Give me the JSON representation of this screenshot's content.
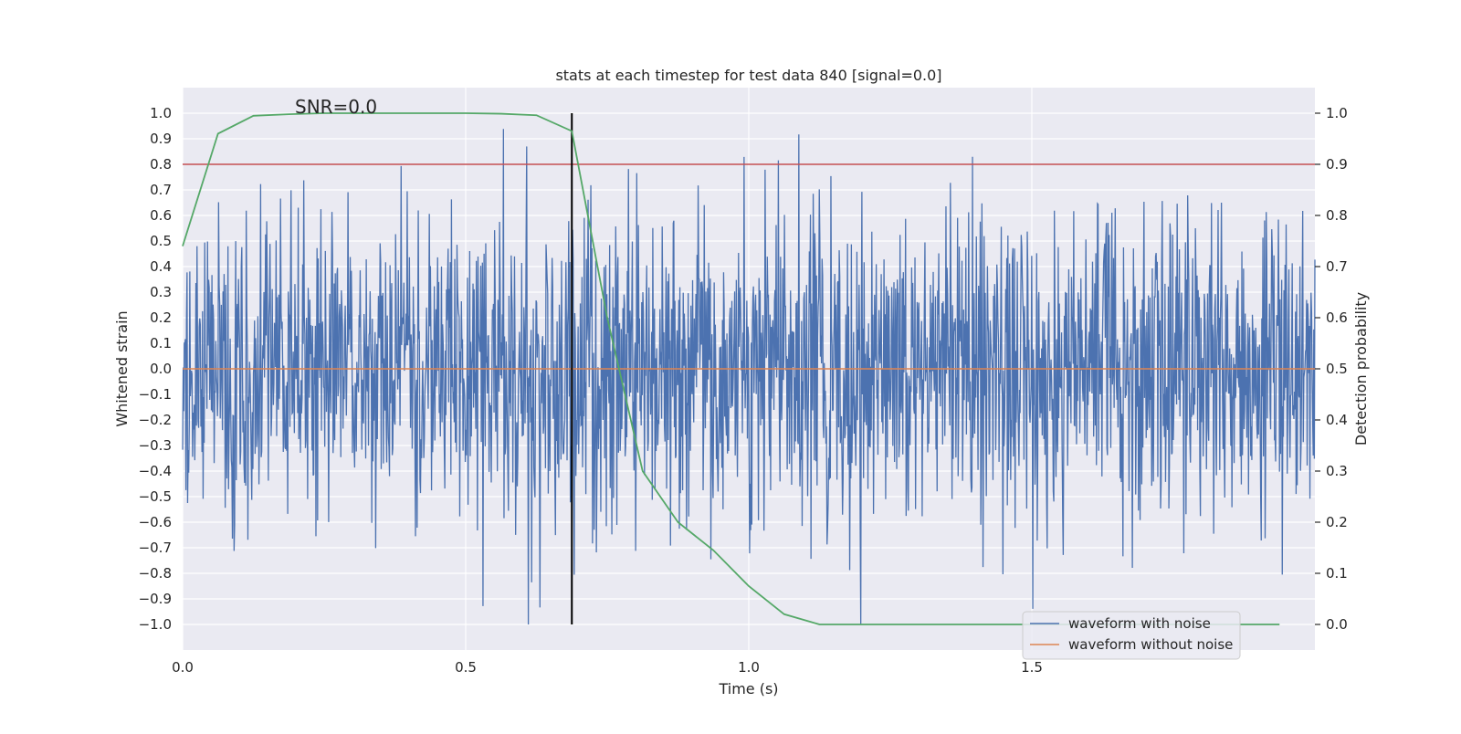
{
  "chart_data": {
    "type": "line",
    "title": "stats at each timestep for test data 840 [signal=0.0]",
    "annotation": "SNR=0.0",
    "xlabel": "Time (s)",
    "ylabel": "Whitened strain",
    "ylabel_right": "Detection probability",
    "xlim": [
      0.0,
      2.0
    ],
    "ylim": [
      -1.1,
      1.1
    ],
    "ylim_right": [
      -0.05,
      1.05
    ],
    "x_ticks": [
      0.0,
      0.5,
      1.0,
      1.5
    ],
    "x_tick_labels": [
      "0.0",
      "0.5",
      "1.0",
      "1.5"
    ],
    "y_ticks": [
      1.0,
      0.9,
      0.8,
      0.7,
      0.6,
      0.5,
      0.4,
      0.3,
      0.2,
      0.1,
      0.0,
      -0.1,
      -0.2,
      -0.3,
      -0.4,
      -0.5,
      -0.6,
      -0.7,
      -0.8,
      -0.9,
      -1.0
    ],
    "y_tick_labels": [
      "1.0",
      "0.9",
      "0.8",
      "0.7",
      "0.6",
      "0.5",
      "0.4",
      "0.3",
      "0.2",
      "0.1",
      "0.0",
      "−0.1",
      "−0.2",
      "−0.3",
      "−0.4",
      "−0.5",
      "−0.6",
      "−0.7",
      "−0.8",
      "−0.9",
      "−1.0"
    ],
    "y_right_ticks": [
      1.0,
      0.9,
      0.8,
      0.7,
      0.6,
      0.5,
      0.4,
      0.3,
      0.2,
      0.1,
      0.0
    ],
    "y_right_tick_labels": [
      "1.0",
      "0.9",
      "0.8",
      "0.7",
      "0.6",
      "0.5",
      "0.4",
      "0.3",
      "0.2",
      "0.1",
      "0.0"
    ],
    "grid": true,
    "legend_position": "bottom-right",
    "legend": [
      {
        "label": "waveform with noise",
        "color": "#4c72b0"
      },
      {
        "label": "waveform without noise",
        "color": "#dd8452"
      }
    ],
    "noise_series": {
      "name": "waveform with noise",
      "color": "#4c72b0",
      "x_start": 0.0,
      "x_end": 2.0,
      "num_samples": 2048,
      "std": 0.3,
      "clip": 1.0,
      "seed": 840
    },
    "clean_series": {
      "name": "waveform without noise",
      "color": "#dd8452",
      "x": [
        0.0,
        2.0
      ],
      "y": [
        0.0,
        0.0
      ]
    },
    "probability_series": {
      "name": "Detection probability",
      "color": "#55a868",
      "axis": "right",
      "x": [
        0.0,
        0.0625,
        0.125,
        0.1875,
        0.25,
        0.3125,
        0.375,
        0.4375,
        0.5,
        0.5625,
        0.625,
        0.6875,
        0.75,
        0.8125,
        0.875,
        0.9375,
        1.0,
        1.0625,
        1.125,
        1.1875,
        1.25,
        1.3125,
        1.375,
        1.4375,
        1.5,
        1.5625,
        1.625,
        1.6875,
        1.75,
        1.8125,
        1.875,
        1.9375
      ],
      "y": [
        0.74,
        0.96,
        0.995,
        0.998,
        1.0,
        1.0,
        1.0,
        1.0,
        1.0,
        0.999,
        0.996,
        0.965,
        0.6,
        0.3,
        0.2,
        0.145,
        0.075,
        0.02,
        0.0,
        0.0,
        0.0,
        0.0,
        0.0,
        0.0,
        0.0,
        0.0,
        0.0,
        0.0,
        0.0,
        0.0,
        0.0,
        0.0
      ]
    },
    "threshold_line": {
      "value": 0.9,
      "axis": "right",
      "color": "#c44e52"
    },
    "vertical_marker": {
      "x": 0.6875,
      "y_from": -1.0,
      "y_to": 1.0,
      "color": "#000000"
    }
  }
}
